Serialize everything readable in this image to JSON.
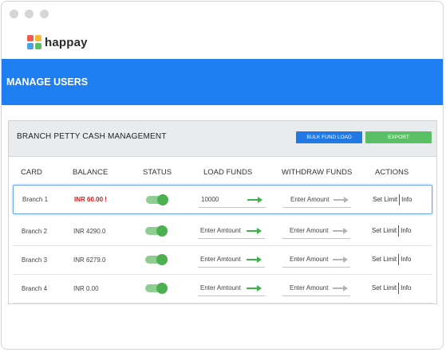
{
  "app": {
    "name": "happay",
    "page_title": "MANAGE USERS"
  },
  "panel": {
    "title": "BRANCH PETTY CASH MANAGEMENT",
    "bulk_button": "BULK FUND LOAD",
    "export_button": "EXPORT"
  },
  "columns": [
    "CARD",
    "BALANCE",
    "STATUS",
    "LOAD FUNDS",
    "WITHDRAW FUNDS",
    "ACTIONS"
  ],
  "rows": [
    {
      "card": "Branch 1",
      "balance": "INR 60.00 !",
      "status": "on",
      "load": "10000",
      "withdraw": "Enter Amount",
      "limit": "Set Limit",
      "info": "Info"
    },
    {
      "card": "Branch 2",
      "balance": "INR 4290.0",
      "status": "on",
      "load": "Enter Amtount",
      "withdraw": "Enter Amount",
      "limit": "Set Limit",
      "info": "Info"
    },
    {
      "card": "Branch 3",
      "balance": "INR 6279.0",
      "status": "on",
      "load": "Enter Amtount",
      "withdraw": "Enter Amount",
      "limit": "Set Limit",
      "info": "Info"
    },
    {
      "card": "Branch 4",
      "balance": "INR 0.00",
      "status": "on",
      "load": "Enter Amtount",
      "withdraw": "Enter Amount",
      "limit": "Set Limit",
      "info": "Info"
    }
  ],
  "colors": {
    "primary": "#1f7ff2",
    "success": "#5bbf66",
    "danger": "#cc1f1f",
    "muted_arrow": "#b5b5b5"
  },
  "icons": {
    "load_arrow": "arrow-right-green-icon",
    "withdraw_arrow": "arrow-right-gray-icon"
  }
}
